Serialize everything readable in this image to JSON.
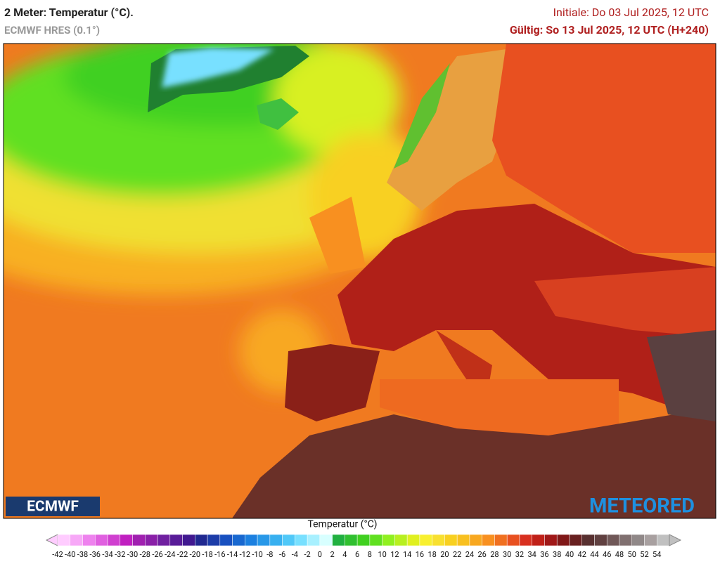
{
  "header": {
    "title": "2 Meter: Temperatur (°C).",
    "subtitle": "ECMWF HRES (0.1°)",
    "initial": "Initiale: Do 03 Jul 2025, 12 UTC",
    "valid": "Gültig: So 13 Jul 2025, 12 UTC (H+240)"
  },
  "logos": {
    "left": "ECMWF",
    "right": "METEORED"
  },
  "colorbar": {
    "title": "Temperatur (°C)",
    "labels": [
      "-42",
      "-40",
      "-38",
      "-36",
      "-34",
      "-32",
      "-30",
      "-28",
      "-26",
      "-24",
      "-22",
      "-20",
      "-18",
      "-16",
      "-14",
      "-12",
      "-10",
      "-8",
      "-6",
      "-4",
      "-2",
      "0",
      "2",
      "4",
      "6",
      "8",
      "10",
      "12",
      "14",
      "16",
      "18",
      "20",
      "22",
      "24",
      "26",
      "28",
      "30",
      "32",
      "34",
      "36",
      "38",
      "40",
      "42",
      "44",
      "46",
      "48",
      "50",
      "52",
      "54"
    ],
    "colors": [
      "#ffccff",
      "#f7a8f7",
      "#ee82ee",
      "#e060e0",
      "#d040d0",
      "#c020c0",
      "#a020b0",
      "#8a20a8",
      "#7020a0",
      "#581c98",
      "#401890",
      "#202890",
      "#1c3ca8",
      "#1850c0",
      "#1868d0",
      "#1c80e0",
      "#2898e8",
      "#38b0f0",
      "#50c8f8",
      "#78e0ff",
      "#a8f0ff",
      "#d8ffff",
      "#20b040",
      "#30c030",
      "#40d020",
      "#60e020",
      "#90f020",
      "#b8f020",
      "#e0f020",
      "#f8f030",
      "#f8e030",
      "#f8d020",
      "#f8c020",
      "#f8a820",
      "#f89020",
      "#f07020",
      "#e85020",
      "#d83020",
      "#c02018",
      "#a01818",
      "#801818",
      "#682020",
      "#583030",
      "#604040",
      "#705858",
      "#807070",
      "#908888",
      "#a8a0a0",
      "#c0c0c0"
    ]
  }
}
